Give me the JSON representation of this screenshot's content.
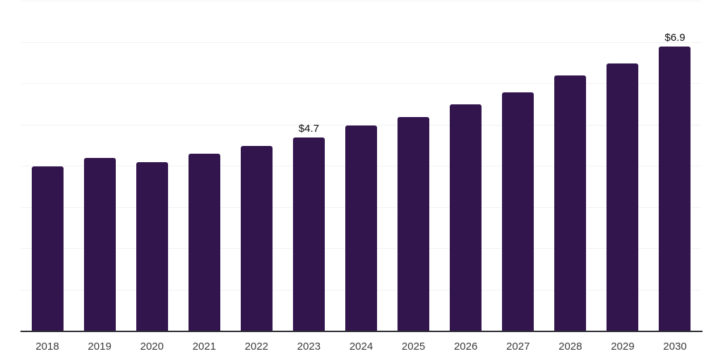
{
  "chart": {
    "colors": {
      "background": "#ffffff",
      "bar": "#33154e",
      "gridline": "#f2f2f2",
      "axis_line": "#2b2b33",
      "tick_label": "#3a3a3a",
      "value_label": "#0e0e0e"
    }
  },
  "chart_data": {
    "type": "bar",
    "title": "",
    "xlabel": "",
    "ylabel": "",
    "categories": [
      "2018",
      "2019",
      "2020",
      "2021",
      "2022",
      "2023",
      "2024",
      "2025",
      "2026",
      "2027",
      "2028",
      "2029",
      "2030"
    ],
    "values": [
      4.0,
      4.2,
      4.1,
      4.3,
      4.5,
      4.7,
      5.0,
      5.2,
      5.5,
      5.8,
      6.2,
      6.5,
      6.9
    ],
    "data_labels": [
      null,
      null,
      null,
      null,
      null,
      "$4.7",
      null,
      null,
      null,
      null,
      null,
      null,
      "$6.9"
    ],
    "ylim": [
      0,
      8
    ],
    "grid_step": 1,
    "grid": "horizontal",
    "y_axis_ticks_visible": false,
    "legend": false
  }
}
